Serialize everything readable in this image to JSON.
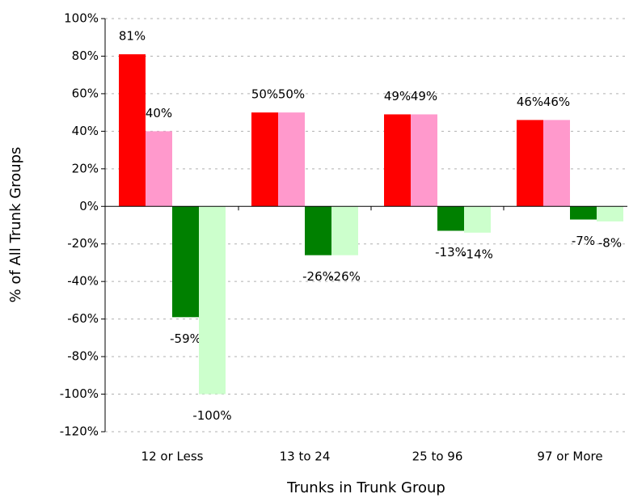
{
  "chart_data": {
    "type": "bar",
    "x_label": "Trunks in Trunk Group",
    "y_label": "% of All Trunk Groups",
    "categories": [
      "12 or Less",
      "13 to 24",
      "25 to 96",
      "97 or More"
    ],
    "series": [
      {
        "color": "#ff0000",
        "values": [
          81,
          50,
          49,
          46
        ],
        "value_labels": [
          "81%",
          "50%",
          "49%",
          "46%"
        ]
      },
      {
        "color": "#ff99cc",
        "values": [
          40,
          50,
          49,
          46
        ],
        "value_labels": [
          "40%",
          "50%",
          "49%",
          "46%"
        ]
      },
      {
        "color": "#008000",
        "values": [
          -59,
          -26,
          -13,
          -7
        ],
        "value_labels": [
          "-59%",
          "-26%",
          "-13%",
          "-7%"
        ]
      },
      {
        "color": "#ccffcc",
        "values": [
          -100,
          -26,
          -14,
          -8
        ],
        "value_labels": [
          "-100%",
          "-26%",
          "-14%",
          "-8%"
        ]
      }
    ],
    "ylim": [
      -120,
      100
    ],
    "yticks": [
      {
        "value": -120,
        "label": "-120%"
      },
      {
        "value": -100,
        "label": "-100%"
      },
      {
        "value": -80,
        "label": "-80%"
      },
      {
        "value": -60,
        "label": "-60%"
      },
      {
        "value": -40,
        "label": "-40%"
      },
      {
        "value": -20,
        "label": "-20%"
      },
      {
        "value": 0,
        "label": "0%"
      },
      {
        "value": 20,
        "label": "20%"
      },
      {
        "value": 40,
        "label": "40%"
      },
      {
        "value": 60,
        "label": "60%"
      },
      {
        "value": 80,
        "label": "80%"
      },
      {
        "value": 100,
        "label": "100%"
      }
    ],
    "grid": true
  }
}
